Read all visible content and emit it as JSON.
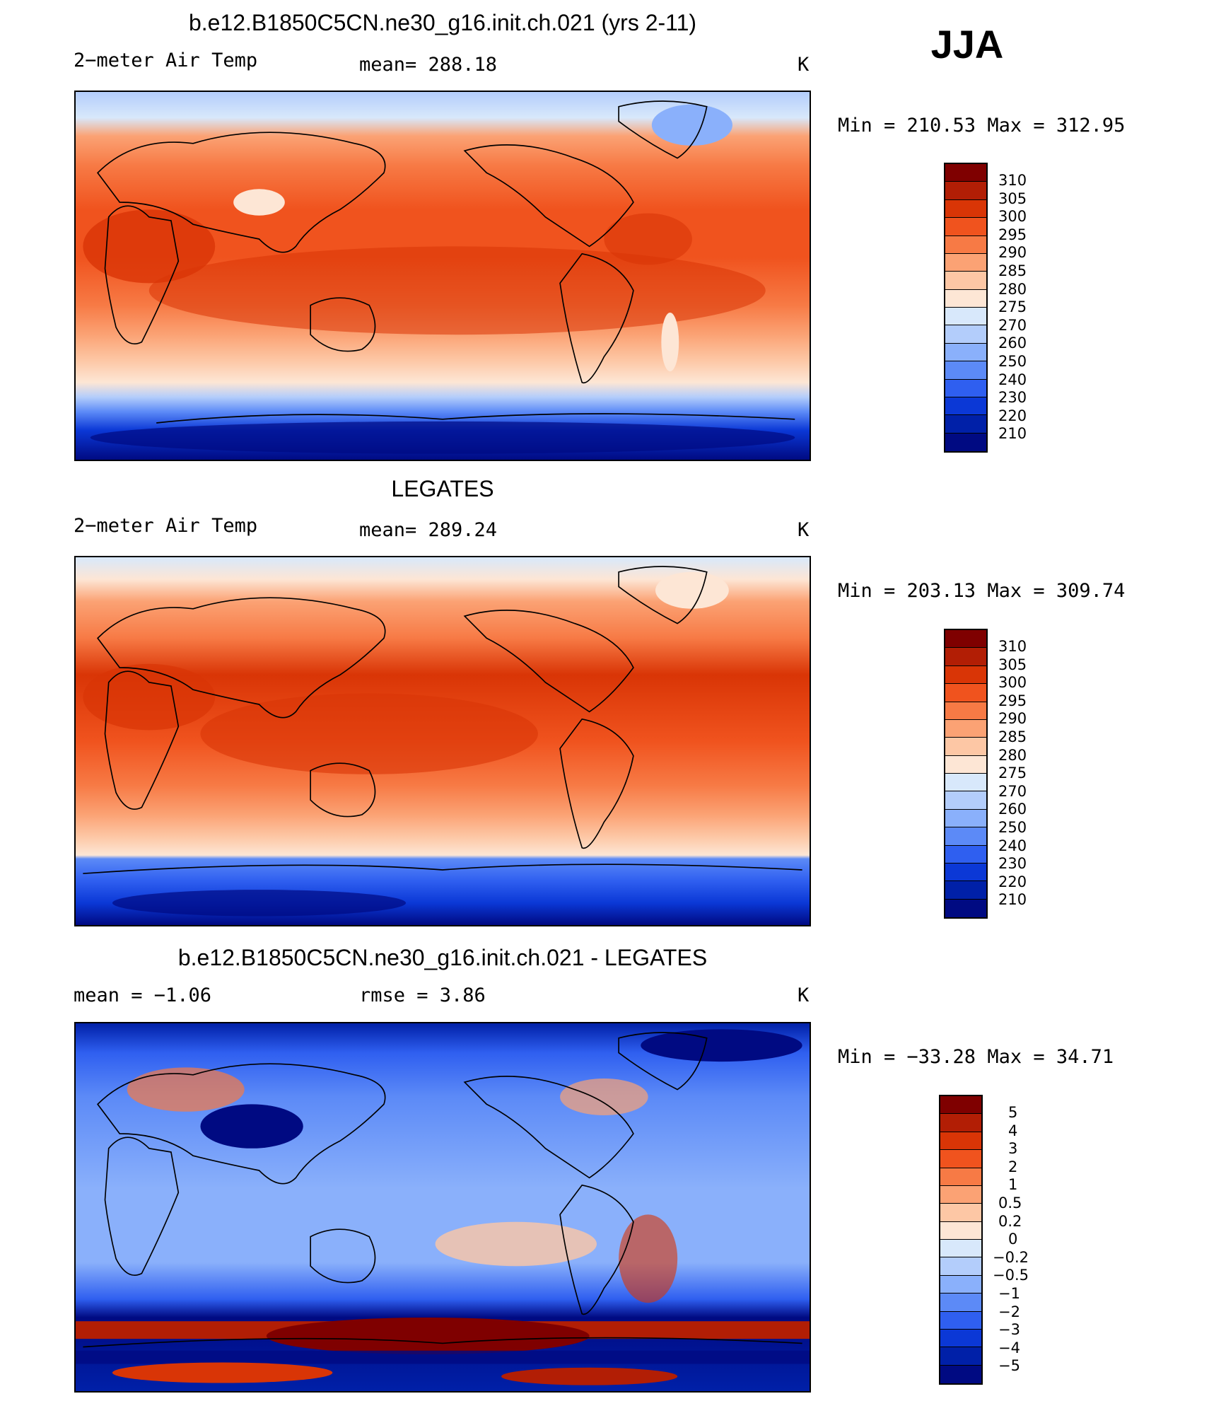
{
  "season": "JJA",
  "panels": [
    {
      "id": "model",
      "title": "b.e12.B1850C5CN.ne30_g16.init.ch.021 (yrs 2-11)",
      "left_label": "2−meter Air Temp",
      "center_label": "mean=  288.18",
      "units": "K",
      "minmax": "Min  =  210.53  Max  =  312.95"
    },
    {
      "id": "obs",
      "title": "LEGATES",
      "left_label": "2−meter Air Temp",
      "center_label": "mean=  289.24",
      "units": "K",
      "minmax": "Min  =  203.13  Max  =  309.74"
    },
    {
      "id": "diff",
      "title": "b.e12.B1850C5CN.ne30_g16.init.ch.021 - LEGATES",
      "left_label": "mean  =    −1.06",
      "center_label": "rmse  =     3.86",
      "units": "K",
      "minmax": "Min  =  −33.28  Max  =    34.71"
    }
  ],
  "chart_data": [
    {
      "type": "heatmap",
      "title": "b.e12.B1850C5CN.ne30_g16.init.ch.021 (yrs 2-11)",
      "variable": "2-meter Air Temp",
      "units": "K",
      "mean": 288.18,
      "min": 210.53,
      "max": 312.95,
      "colorbar_levels": [
        "310",
        "305",
        "300",
        "295",
        "290",
        "285",
        "280",
        "275",
        "270",
        "260",
        "250",
        "240",
        "230",
        "220",
        "210"
      ],
      "colorbar_colors": [
        "#7f0000",
        "#b21e05",
        "#d93506",
        "#f0531e",
        "#f77a45",
        "#fba274",
        "#fdc7a5",
        "#fde6d5",
        "#d8e8fb",
        "#b3cdfb",
        "#8ab0fb",
        "#5c8af7",
        "#2f5ff0",
        "#0b38d6",
        "#0020a8",
        "#000a82"
      ]
    },
    {
      "type": "heatmap",
      "title": "LEGATES",
      "variable": "2-meter Air Temp",
      "units": "K",
      "mean": 289.24,
      "min": 203.13,
      "max": 309.74,
      "colorbar_levels": [
        "310",
        "305",
        "300",
        "295",
        "290",
        "285",
        "280",
        "275",
        "270",
        "260",
        "250",
        "240",
        "230",
        "220",
        "210"
      ],
      "colorbar_colors": [
        "#7f0000",
        "#b21e05",
        "#d93506",
        "#f0531e",
        "#f77a45",
        "#fba274",
        "#fdc7a5",
        "#fde6d5",
        "#d8e8fb",
        "#b3cdfb",
        "#8ab0fb",
        "#5c8af7",
        "#2f5ff0",
        "#0b38d6",
        "#0020a8",
        "#000a82"
      ]
    },
    {
      "type": "heatmap",
      "title": "b.e12.B1850C5CN.ne30_g16.init.ch.021 - LEGATES",
      "units": "K",
      "mean": -1.06,
      "rmse": 3.86,
      "min": -33.28,
      "max": 34.71,
      "colorbar_levels": [
        "5",
        "4",
        "3",
        "2",
        "1",
        "0.5",
        "0.2",
        "0",
        "−0.2",
        "−0.5",
        "−1",
        "−2",
        "−3",
        "−4",
        "−5"
      ],
      "colorbar_colors": [
        "#7f0000",
        "#b21e05",
        "#d93506",
        "#f0531e",
        "#f77a45",
        "#fba274",
        "#fdc7a5",
        "#fde6d5",
        "#d8e8fb",
        "#b3cdfb",
        "#8ab0fb",
        "#5c8af7",
        "#2f5ff0",
        "#0b38d6",
        "#0020a8",
        "#000a82"
      ]
    }
  ]
}
